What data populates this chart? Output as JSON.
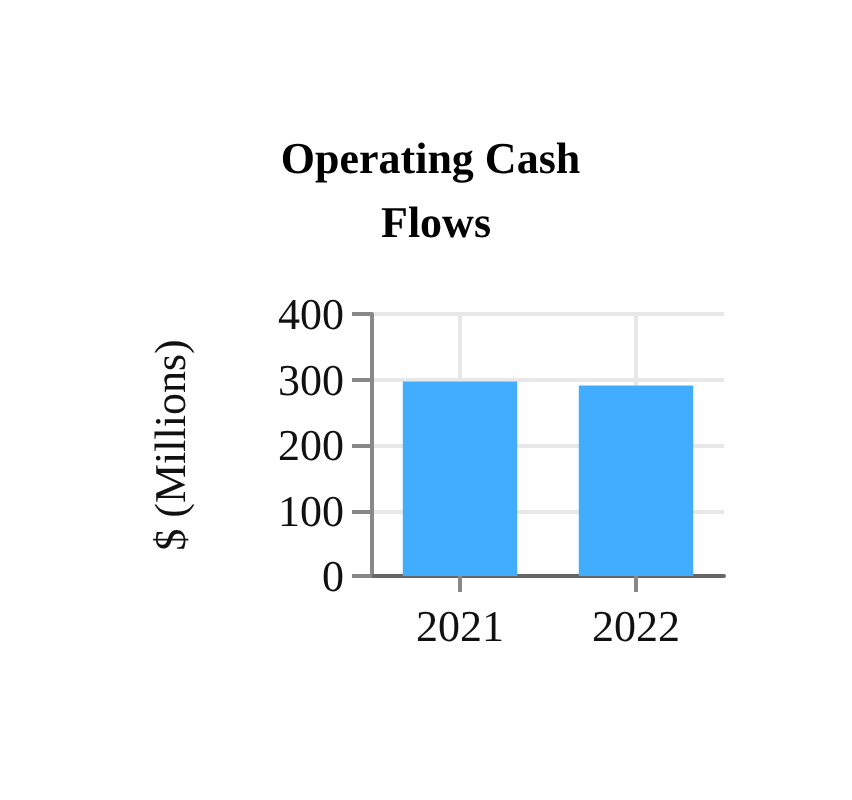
{
  "chart_data": {
    "type": "bar",
    "title": "Operating Cash Flows",
    "ylabel": "$ (Millions)",
    "categories": [
      "2021",
      "2022"
    ],
    "values": [
      297,
      291
    ],
    "color": "#42adff",
    "ylim": [
      0,
      400
    ],
    "yticks": [
      0,
      100,
      200,
      300,
      400
    ],
    "grid": true
  }
}
